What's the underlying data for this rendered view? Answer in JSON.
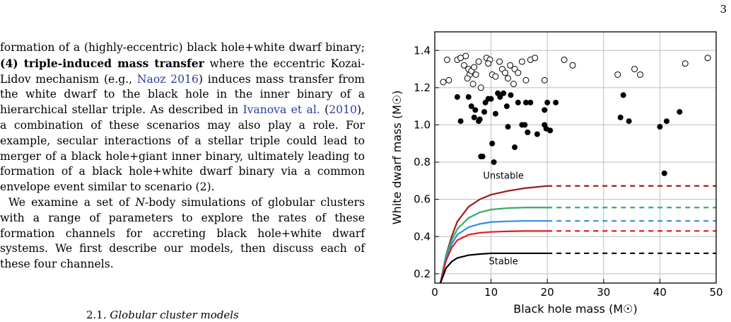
{
  "page": {
    "number": "3"
  },
  "paragraph1": {
    "a": "formation of a (highly-eccentric) black hole+white dwarf binary; ",
    "b": "(4) triple-induced mass transfer",
    "c": " where the eccentric Kozai-Lidov mechanism (e.g., ",
    "cite1": "Naoz 2016",
    "d": ") induces mass transfer from the white dwarf to the black hole in the inner binary of a hierarchical stellar triple. As described in ",
    "cite2": "Ivanova et al.",
    "e": " (",
    "cite2year": "2010",
    "f": "), a combination of these scenarios may also play a role. For example, secular interactions of a stellar triple could lead to merger of a black hole+giant inner binary, ultimately leading to formation of a black hole+white dwarf binary via a common envelope event similar to scenario (2)."
  },
  "paragraph2": {
    "a": "We examine a set of ",
    "n": "N",
    "b": "-body simulations of globular clusters with a range of parameters to explore the rates of these formation channels for accreting black hole+white dwarf systems. We first describe our models, then discuss each of these four channels."
  },
  "section": {
    "number": "2.1.",
    "title": "Globular cluster models"
  },
  "chart_data": {
    "type": "scatter",
    "xlabel": "Black hole mass (M☉)",
    "ylabel": "White dwarf mass (M☉)",
    "xlim": [
      0,
      50
    ],
    "ylim": [
      0.15,
      1.5
    ],
    "xticks": [
      "0",
      "10",
      "20",
      "30",
      "40",
      "50"
    ],
    "yticks": [
      "0.2",
      "0.4",
      "0.6",
      "0.8",
      "1.0",
      "1.2",
      "1.4"
    ],
    "grid": true,
    "annotations": [
      {
        "text": "Unstable",
        "x": 12.2,
        "y": 0.71
      },
      {
        "text": "Stable",
        "x": 12.2,
        "y": 0.25
      }
    ],
    "open_points": [
      [
        1.5,
        1.23
      ],
      [
        2.2,
        1.35
      ],
      [
        2.5,
        1.24
      ],
      [
        4.0,
        1.35
      ],
      [
        4.6,
        1.36
      ],
      [
        5.5,
        1.37
      ],
      [
        5.2,
        1.32
      ],
      [
        6.0,
        1.3
      ],
      [
        6.2,
        1.27
      ],
      [
        5.8,
        1.25
      ],
      [
        6.5,
        1.29
      ],
      [
        6.8,
        1.22
      ],
      [
        7.0,
        1.31
      ],
      [
        7.3,
        1.27
      ],
      [
        7.8,
        1.34
      ],
      [
        8.2,
        1.2
      ],
      [
        9.2,
        1.36
      ],
      [
        9.8,
        1.35
      ],
      [
        9.5,
        1.33
      ],
      [
        10.2,
        1.27
      ],
      [
        10.8,
        1.26
      ],
      [
        11.5,
        1.34
      ],
      [
        12.0,
        1.3
      ],
      [
        12.5,
        1.28
      ],
      [
        13.0,
        1.25
      ],
      [
        13.4,
        1.32
      ],
      [
        14.0,
        1.22
      ],
      [
        14.2,
        1.3
      ],
      [
        14.8,
        1.28
      ],
      [
        15.5,
        1.34
      ],
      [
        16.2,
        1.24
      ],
      [
        17.0,
        1.35
      ],
      [
        17.8,
        1.36
      ],
      [
        19.5,
        1.24
      ],
      [
        23.0,
        1.35
      ],
      [
        24.5,
        1.32
      ],
      [
        32.5,
        1.27
      ],
      [
        35.5,
        1.3
      ],
      [
        36.5,
        1.27
      ],
      [
        44.5,
        1.33
      ],
      [
        48.5,
        1.36
      ]
    ],
    "filled_points": [
      [
        4.0,
        1.15
      ],
      [
        4.6,
        1.02
      ],
      [
        6.0,
        1.15
      ],
      [
        6.5,
        1.1
      ],
      [
        7.0,
        1.04
      ],
      [
        7.2,
        1.08
      ],
      [
        7.8,
        1.02
      ],
      [
        8.0,
        1.03
      ],
      [
        8.2,
        0.83
      ],
      [
        8.5,
        0.83
      ],
      [
        8.8,
        1.07
      ],
      [
        9.0,
        1.12
      ],
      [
        9.5,
        1.14
      ],
      [
        10.0,
        1.14
      ],
      [
        10.2,
        0.9
      ],
      [
        10.5,
        0.8
      ],
      [
        10.8,
        1.06
      ],
      [
        11.2,
        1.17
      ],
      [
        11.6,
        1.15
      ],
      [
        12.2,
        1.17
      ],
      [
        12.8,
        1.1
      ],
      [
        13.0,
        0.99
      ],
      [
        13.5,
        1.16
      ],
      [
        14.2,
        0.88
      ],
      [
        14.8,
        1.12
      ],
      [
        15.5,
        1.0
      ],
      [
        16.0,
        1.0
      ],
      [
        16.5,
        0.96
      ],
      [
        16.2,
        1.12
      ],
      [
        17.0,
        1.12
      ],
      [
        18.2,
        0.95
      ],
      [
        19.5,
        1.08
      ],
      [
        19.8,
        0.98
      ],
      [
        19.5,
        1.0
      ],
      [
        20.5,
        0.97
      ],
      [
        20.0,
        1.12
      ],
      [
        21.5,
        1.12
      ],
      [
        33.5,
        1.16
      ],
      [
        33.0,
        1.04
      ],
      [
        34.5,
        1.02
      ],
      [
        40.0,
        0.99
      ],
      [
        41.2,
        1.02
      ],
      [
        43.5,
        1.07
      ],
      [
        40.8,
        0.74
      ]
    ],
    "series": [
      {
        "color": "#9e1b1b",
        "x": [
          1,
          2,
          3,
          4,
          6,
          8,
          10,
          13,
          16,
          20
        ],
        "y": [
          0.15,
          0.3,
          0.4,
          0.48,
          0.56,
          0.6,
          0.625,
          0.645,
          0.66,
          0.672
        ],
        "extend_to": 50
      },
      {
        "color": "#3aaa6a",
        "x": [
          1,
          2,
          3,
          4,
          6,
          8,
          10,
          13,
          16,
          20
        ],
        "y": [
          0.15,
          0.3,
          0.38,
          0.44,
          0.5,
          0.53,
          0.545,
          0.553,
          0.556,
          0.556
        ],
        "extend_to": 50
      },
      {
        "color": "#2e8fe0",
        "x": [
          1,
          2,
          3,
          4,
          6,
          8,
          10,
          13,
          16,
          20
        ],
        "y": [
          0.15,
          0.28,
          0.36,
          0.41,
          0.45,
          0.468,
          0.478,
          0.482,
          0.484,
          0.484
        ],
        "extend_to": 50
      },
      {
        "color": "#e01f1f",
        "x": [
          1,
          2,
          3,
          4,
          6,
          8,
          10,
          13,
          16,
          20
        ],
        "y": [
          0.15,
          0.27,
          0.34,
          0.38,
          0.41,
          0.42,
          0.425,
          0.428,
          0.43,
          0.43
        ],
        "extend_to": 50
      },
      {
        "color": "#000000",
        "x": [
          1,
          2,
          3,
          4,
          6,
          8,
          10,
          13,
          16,
          20
        ],
        "y": [
          0.15,
          0.23,
          0.265,
          0.285,
          0.3,
          0.306,
          0.31,
          0.31,
          0.31,
          0.31
        ],
        "extend_to": 50
      }
    ]
  }
}
